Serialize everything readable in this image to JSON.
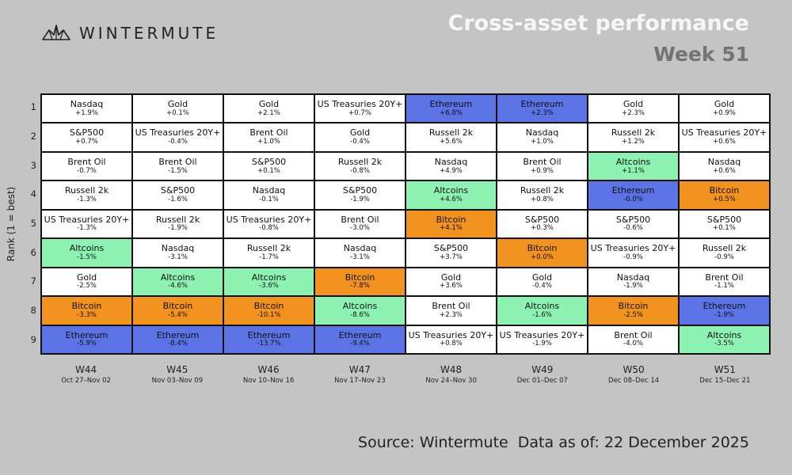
{
  "brand": {
    "name": "WINTERMUTE",
    "logo_icon": "wintermute-logo-icon"
  },
  "title": "Cross-asset performance",
  "subtitle": "Week 51",
  "footer": {
    "source": "Source: Wintermute  Data as of: 22 December 2025"
  },
  "colors": {
    "Ethereum": "#5b73e4",
    "Bitcoin": "#f2921f",
    "Altcoins": "#8ef2b3",
    "default": "#ffffff"
  },
  "chart_data": {
    "type": "table",
    "ylabel": "Rank (1 = best)",
    "ranks": [
      "1",
      "2",
      "3",
      "4",
      "5",
      "6",
      "7",
      "8",
      "9"
    ],
    "weeks": [
      {
        "label": "W44",
        "dates": "Oct 27–Nov 02",
        "entries": [
          {
            "asset": "Nasdaq",
            "ret": "+1.9%"
          },
          {
            "asset": "S&P500",
            "ret": "+0.7%"
          },
          {
            "asset": "Brent Oil",
            "ret": "-0.7%"
          },
          {
            "asset": "Russell 2k",
            "ret": "-1.3%"
          },
          {
            "asset": "US Treasuries 20Y+",
            "ret": "-1.3%"
          },
          {
            "asset": "Altcoins",
            "ret": "-1.5%"
          },
          {
            "asset": "Gold",
            "ret": "-2.5%"
          },
          {
            "asset": "Bitcoin",
            "ret": "-3.3%"
          },
          {
            "asset": "Ethereum",
            "ret": "-5.9%"
          }
        ]
      },
      {
        "label": "W45",
        "dates": "Nov 03–Nov 09",
        "entries": [
          {
            "asset": "Gold",
            "ret": "+0.1%"
          },
          {
            "asset": "US Treasuries 20Y+",
            "ret": "-0.4%"
          },
          {
            "asset": "Brent Oil",
            "ret": "-1.5%"
          },
          {
            "asset": "S&P500",
            "ret": "-1.6%"
          },
          {
            "asset": "Russell 2k",
            "ret": "-1.9%"
          },
          {
            "asset": "Nasdaq",
            "ret": "-3.1%"
          },
          {
            "asset": "Altcoins",
            "ret": "-4.6%"
          },
          {
            "asset": "Bitcoin",
            "ret": "-5.4%"
          },
          {
            "asset": "Ethereum",
            "ret": "-8.4%"
          }
        ]
      },
      {
        "label": "W46",
        "dates": "Nov 10–Nov 16",
        "entries": [
          {
            "asset": "Gold",
            "ret": "+2.1%"
          },
          {
            "asset": "Brent Oil",
            "ret": "+1.0%"
          },
          {
            "asset": "S&P500",
            "ret": "+0.1%"
          },
          {
            "asset": "Nasdaq",
            "ret": "-0.1%"
          },
          {
            "asset": "US Treasuries 20Y+",
            "ret": "-0.8%"
          },
          {
            "asset": "Russell 2k",
            "ret": "-1.7%"
          },
          {
            "asset": "Altcoins",
            "ret": "-3.6%"
          },
          {
            "asset": "Bitcoin",
            "ret": "-10.1%"
          },
          {
            "asset": "Ethereum",
            "ret": "-13.7%"
          }
        ]
      },
      {
        "label": "W47",
        "dates": "Nov 17–Nov 23",
        "entries": [
          {
            "asset": "US Treasuries 20Y+",
            "ret": "+0.7%"
          },
          {
            "asset": "Gold",
            "ret": "-0.4%"
          },
          {
            "asset": "Russell 2k",
            "ret": "-0.8%"
          },
          {
            "asset": "S&P500",
            "ret": "-1.9%"
          },
          {
            "asset": "Brent Oil",
            "ret": "-3.0%"
          },
          {
            "asset": "Nasdaq",
            "ret": "-3.1%"
          },
          {
            "asset": "Bitcoin",
            "ret": "-7.8%"
          },
          {
            "asset": "Altcoins",
            "ret": "-8.6%"
          },
          {
            "asset": "Ethereum",
            "ret": "-9.4%"
          }
        ]
      },
      {
        "label": "W48",
        "dates": "Nov 24–Nov 30",
        "entries": [
          {
            "asset": "Ethereum",
            "ret": "+6.8%"
          },
          {
            "asset": "Russell 2k",
            "ret": "+5.6%"
          },
          {
            "asset": "Nasdaq",
            "ret": "+4.9%"
          },
          {
            "asset": "Altcoins",
            "ret": "+4.6%"
          },
          {
            "asset": "Bitcoin",
            "ret": "+4.1%"
          },
          {
            "asset": "S&P500",
            "ret": "+3.7%"
          },
          {
            "asset": "Gold",
            "ret": "+3.6%"
          },
          {
            "asset": "Brent Oil",
            "ret": "+2.3%"
          },
          {
            "asset": "US Treasuries 20Y+",
            "ret": "+0.8%"
          }
        ]
      },
      {
        "label": "W49",
        "dates": "Dec 01–Dec 07",
        "entries": [
          {
            "asset": "Ethereum",
            "ret": "+2.3%"
          },
          {
            "asset": "Nasdaq",
            "ret": "+1.0%"
          },
          {
            "asset": "Brent Oil",
            "ret": "+0.9%"
          },
          {
            "asset": "Russell 2k",
            "ret": "+0.8%"
          },
          {
            "asset": "S&P500",
            "ret": "+0.3%"
          },
          {
            "asset": "Bitcoin",
            "ret": "+0.0%"
          },
          {
            "asset": "Gold",
            "ret": "-0.4%"
          },
          {
            "asset": "Altcoins",
            "ret": "-1.6%"
          },
          {
            "asset": "US Treasuries 20Y+",
            "ret": "-1.9%"
          }
        ]
      },
      {
        "label": "W50",
        "dates": "Dec 08–Dec 14",
        "entries": [
          {
            "asset": "Gold",
            "ret": "+2.3%"
          },
          {
            "asset": "Russell 2k",
            "ret": "+1.2%"
          },
          {
            "asset": "Altcoins",
            "ret": "+1.1%"
          },
          {
            "asset": "Ethereum",
            "ret": "-0.0%"
          },
          {
            "asset": "S&P500",
            "ret": "-0.6%"
          },
          {
            "asset": "US Treasuries 20Y+",
            "ret": "-0.9%"
          },
          {
            "asset": "Nasdaq",
            "ret": "-1.9%"
          },
          {
            "asset": "Bitcoin",
            "ret": "-2.5%"
          },
          {
            "asset": "Brent Oil",
            "ret": "-4.0%"
          }
        ]
      },
      {
        "label": "W51",
        "dates": "Dec 15–Dec 21",
        "entries": [
          {
            "asset": "Gold",
            "ret": "+0.9%"
          },
          {
            "asset": "US Treasuries 20Y+",
            "ret": "+0.6%"
          },
          {
            "asset": "Nasdaq",
            "ret": "+0.6%"
          },
          {
            "asset": "Bitcoin",
            "ret": "+0.5%"
          },
          {
            "asset": "S&P500",
            "ret": "+0.1%"
          },
          {
            "asset": "Russell 2k",
            "ret": "-0.9%"
          },
          {
            "asset": "Brent Oil",
            "ret": "-1.1%"
          },
          {
            "asset": "Ethereum",
            "ret": "-1.9%"
          },
          {
            "asset": "Altcoins",
            "ret": "-3.5%"
          }
        ]
      }
    ]
  }
}
